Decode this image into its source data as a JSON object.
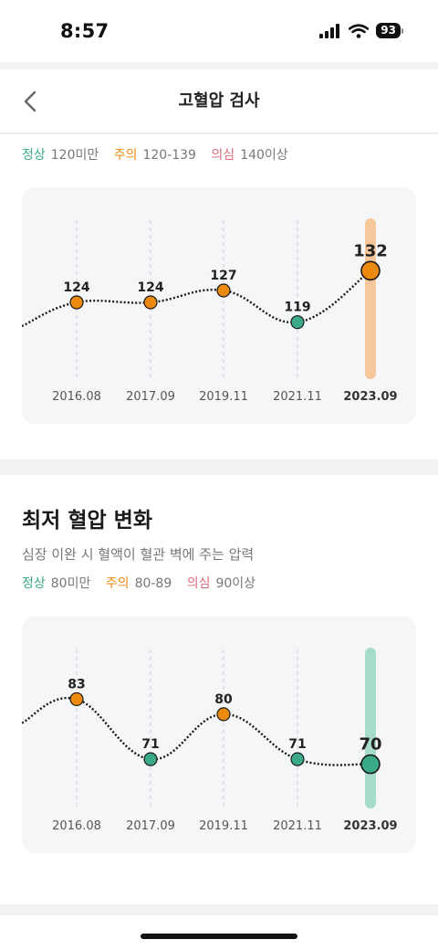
{
  "status_bar": {
    "time": "8:57",
    "battery": "93"
  },
  "header": {
    "title": "고혈압 검사"
  },
  "systolic": {
    "legend": [
      {
        "label": "정상",
        "value": "120미만",
        "color": "#3aaa88"
      },
      {
        "label": "주의",
        "value": "120-139",
        "color": "#ec8a10"
      },
      {
        "label": "의심",
        "value": "140이상",
        "color": "#e06a7a"
      }
    ],
    "chart_data": {
      "type": "line",
      "categories": [
        "2016.08",
        "2017.09",
        "2019.11",
        "2021.11",
        "2023.09"
      ],
      "values": [
        124,
        124,
        127,
        119,
        132
      ],
      "status": [
        "warn",
        "warn",
        "warn",
        "normal",
        "warn"
      ],
      "highlight_index": 4,
      "ylim": [
        112,
        136
      ]
    }
  },
  "diastolic": {
    "title": "최저 혈압 변화",
    "description": "심장 이완 시 혈액이 혈관 벽에 주는 압력",
    "legend": [
      {
        "label": "정상",
        "value": "80미만",
        "color": "#3aaa88"
      },
      {
        "label": "주의",
        "value": "80-89",
        "color": "#ec8a10"
      },
      {
        "label": "의심",
        "value": "90이상",
        "color": "#e06a7a"
      }
    ],
    "chart_data": {
      "type": "line",
      "categories": [
        "2016.08",
        "2017.09",
        "2019.11",
        "2021.11",
        "2023.09"
      ],
      "values": [
        83,
        71,
        80,
        71,
        70
      ],
      "status": [
        "warn",
        "normal",
        "warn",
        "normal",
        "normal"
      ],
      "highlight_index": 4,
      "ylim": [
        67,
        86
      ]
    }
  },
  "colors": {
    "normal": "#3aaa88",
    "warn": "#ec8a10",
    "warn_bar": "#f6c79a",
    "normal_bar": "#a7dccb"
  }
}
